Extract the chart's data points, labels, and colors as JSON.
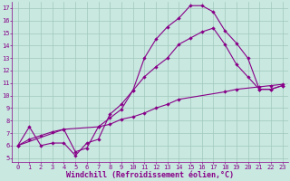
{
  "xlabel": "Windchill (Refroidissement éolien,°C)",
  "bg_color": "#c8e8e0",
  "line_color": "#880088",
  "grid_color": "#a0c8bc",
  "xlim": [
    -0.5,
    23.5
  ],
  "ylim": [
    4.7,
    17.5
  ],
  "xticks": [
    0,
    1,
    2,
    3,
    4,
    5,
    6,
    7,
    8,
    9,
    10,
    11,
    12,
    13,
    14,
    15,
    16,
    17,
    18,
    19,
    20,
    21,
    22,
    23
  ],
  "yticks": [
    5,
    6,
    7,
    8,
    9,
    10,
    11,
    12,
    13,
    14,
    15,
    16,
    17
  ],
  "line1_x": [
    0,
    1,
    2,
    3,
    4,
    5,
    6,
    7,
    8,
    9,
    10,
    11,
    12,
    13,
    14,
    15,
    16,
    17,
    18,
    19,
    20,
    21,
    22,
    23
  ],
  "line1_y": [
    6.0,
    7.5,
    6.0,
    6.2,
    6.2,
    5.2,
    6.2,
    6.5,
    8.5,
    9.3,
    10.4,
    13.0,
    14.5,
    15.5,
    16.2,
    17.2,
    17.2,
    16.7,
    15.2,
    14.2,
    13.0,
    10.5,
    10.5,
    10.8
  ],
  "line2_x": [
    0,
    1,
    2,
    3,
    4,
    5,
    6,
    7,
    8,
    9,
    10,
    11,
    12,
    13,
    14,
    15,
    16,
    17,
    18,
    19,
    20,
    21,
    22,
    23
  ],
  "line2_y": [
    6.0,
    6.5,
    6.8,
    7.1,
    7.3,
    5.5,
    5.8,
    7.5,
    8.2,
    8.9,
    10.4,
    11.5,
    12.3,
    13.0,
    14.1,
    14.6,
    15.1,
    15.4,
    14.1,
    12.5,
    11.5,
    10.5,
    10.5,
    10.8
  ],
  "line3_x": [
    0,
    4,
    7,
    8,
    9,
    10,
    11,
    12,
    13,
    14,
    18,
    19,
    21,
    22,
    23
  ],
  "line3_y": [
    6.0,
    7.3,
    7.5,
    7.7,
    8.1,
    8.3,
    8.6,
    9.0,
    9.3,
    9.7,
    10.3,
    10.5,
    10.7,
    10.8,
    10.9
  ],
  "tick_fontsize": 5.0,
  "xlabel_fontsize": 6.0
}
